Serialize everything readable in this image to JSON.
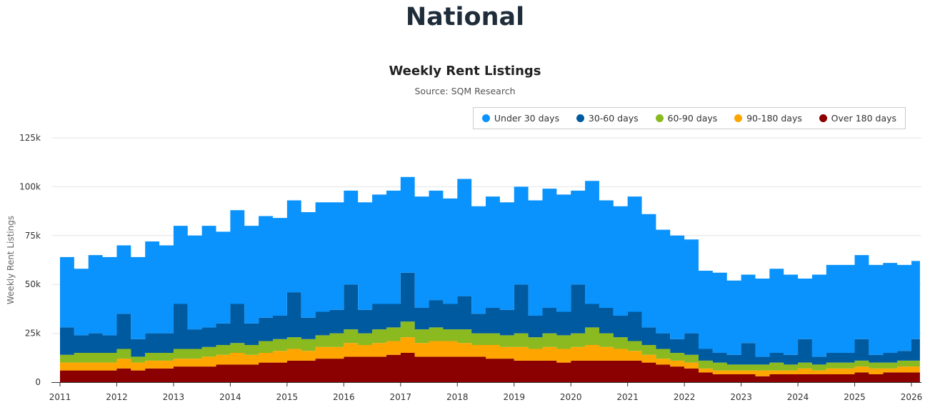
{
  "page_title": "National",
  "chart_data": {
    "type": "area",
    "stacked": true,
    "title": "Weekly Rent Listings",
    "subtitle": "Source: SQM Research",
    "xlabel": "",
    "ylabel": "Weekly Rent Listings",
    "ylim": [
      0,
      125000
    ],
    "yticks": [
      0,
      25000,
      50000,
      75000,
      100000,
      125000
    ],
    "ytick_labels": [
      "0",
      "25k",
      "50k",
      "75k",
      "100k",
      "125k"
    ],
    "xlim": [
      2011,
      2026.15
    ],
    "xticks": [
      2011,
      2012,
      2013,
      2014,
      2015,
      2016,
      2017,
      2018,
      2019,
      2020,
      2021,
      2022,
      2023,
      2024,
      2025,
      2026
    ],
    "xtick_labels": [
      "2011",
      "2012",
      "2013",
      "2014",
      "2015",
      "2016",
      "2017",
      "2018",
      "2019",
      "2020",
      "2021",
      "2022",
      "2023",
      "2024",
      "2025",
      "2026"
    ],
    "grid": true,
    "legend_position": "top-right",
    "x_start": 2011,
    "x_step": 0.25,
    "series": [
      {
        "name": "Over 180 days",
        "color": "#8b0000",
        "values": [
          6,
          6,
          6,
          6,
          7,
          6,
          7,
          7,
          8,
          8,
          8,
          9,
          9,
          9,
          10,
          10,
          11,
          11,
          12,
          12,
          13,
          13,
          13,
          14,
          15,
          13,
          13,
          13,
          13,
          13,
          12,
          12,
          11,
          11,
          11,
          10,
          11,
          11,
          11,
          11,
          11,
          10,
          9,
          8,
          7,
          5,
          4,
          4,
          4,
          3,
          4,
          4,
          4,
          4,
          4,
          4,
          5,
          4,
          5,
          5,
          5
        ]
      },
      {
        "name": "90-180 days",
        "color": "#ffa500",
        "values": [
          4,
          4,
          4,
          4,
          5,
          4,
          4,
          4,
          4,
          4,
          5,
          5,
          6,
          5,
          5,
          6,
          6,
          5,
          6,
          6,
          7,
          6,
          7,
          7,
          8,
          7,
          8,
          8,
          7,
          6,
          7,
          6,
          7,
          6,
          7,
          7,
          7,
          8,
          7,
          6,
          5,
          4,
          3,
          3,
          3,
          2,
          2,
          2,
          2,
          3,
          2,
          2,
          3,
          2,
          3,
          3,
          3,
          3,
          2,
          3,
          3
        ]
      },
      {
        "name": "60-90 days",
        "color": "#8aba20",
        "values": [
          4,
          5,
          5,
          5,
          5,
          3,
          4,
          4,
          5,
          5,
          5,
          5,
          5,
          5,
          6,
          6,
          6,
          6,
          6,
          7,
          7,
          6,
          7,
          7,
          8,
          7,
          7,
          6,
          7,
          6,
          6,
          6,
          7,
          6,
          7,
          7,
          7,
          9,
          7,
          6,
          5,
          5,
          5,
          4,
          4,
          4,
          4,
          3,
          3,
          3,
          4,
          3,
          3,
          3,
          3,
          3,
          3,
          3,
          3,
          3,
          3
        ]
      },
      {
        "name": "30-60 days",
        "color": "#005aa0",
        "values": [
          14,
          9,
          10,
          9,
          18,
          9,
          10,
          10,
          23,
          10,
          10,
          11,
          20,
          11,
          12,
          12,
          23,
          11,
          12,
          12,
          23,
          12,
          13,
          12,
          25,
          11,
          14,
          13,
          17,
          10,
          13,
          13,
          25,
          11,
          13,
          12,
          25,
          12,
          13,
          11,
          15,
          9,
          8,
          7,
          11,
          6,
          5,
          5,
          11,
          4,
          5,
          5,
          12,
          4,
          5,
          5,
          11,
          4,
          5,
          5,
          11
        ]
      },
      {
        "name": "Under 30 days",
        "color": "#0a93fc",
        "values": [
          36,
          34,
          40,
          40,
          35,
          42,
          47,
          45,
          40,
          48,
          52,
          47,
          48,
          50,
          52,
          50,
          47,
          54,
          56,
          55,
          48,
          55,
          56,
          58,
          49,
          57,
          56,
          54,
          60,
          55,
          57,
          55,
          50,
          59,
          61,
          60,
          48,
          63,
          55,
          56,
          59,
          58,
          53,
          53,
          48,
          40,
          41,
          38,
          35,
          40,
          43,
          41,
          31,
          42,
          45,
          45,
          43,
          46,
          46,
          44,
          40
        ]
      }
    ],
    "value_unit": "thousands"
  },
  "legend": [
    {
      "label": "Under 30 days",
      "color": "#0a93fc"
    },
    {
      "label": "30-60 days",
      "color": "#005aa0"
    },
    {
      "label": "60-90 days",
      "color": "#8aba20"
    },
    {
      "label": "90-180 days",
      "color": "#ffa500"
    },
    {
      "label": "Over 180 days",
      "color": "#8b0000"
    }
  ]
}
